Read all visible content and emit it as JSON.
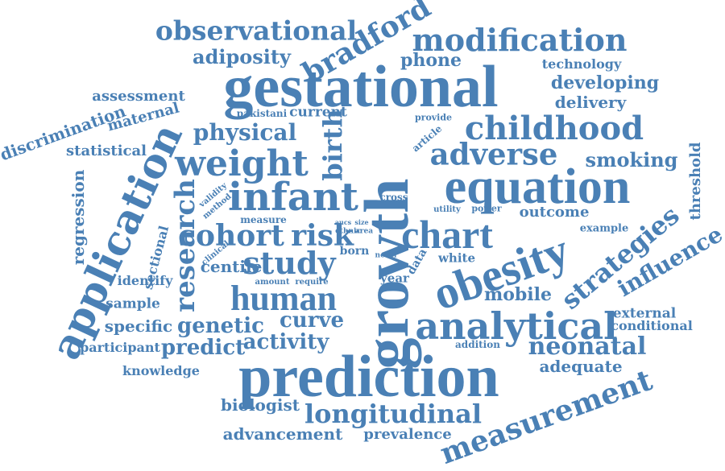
{
  "color": "#4a80b5",
  "words": [
    "observational",
    "bradford",
    "modification",
    "adiposity",
    "phone",
    "technology",
    "gestational",
    "developing",
    "assessment",
    "delivery",
    "maternal",
    "pakistani",
    "current",
    "provide",
    "childhood",
    "discrimination",
    "article",
    "statistical",
    "physical",
    "adverse",
    "smoking",
    "weight",
    "birth",
    "threshold",
    "regression",
    "application",
    "research",
    "validity",
    "method",
    "infant",
    "cross",
    "equation",
    "sectional",
    "utility",
    "power",
    "outcome",
    "example",
    "measure",
    "aucs",
    "size",
    "ethnic",
    "area",
    "cohort",
    "risk",
    "chart",
    "strategies",
    "clinical",
    "born",
    "novel",
    "data",
    "white",
    "study",
    "centile",
    "identify",
    "amount",
    "require",
    "year",
    "obesity",
    "influence",
    "sample",
    "human",
    "mobile",
    "growth",
    "external",
    "specific",
    "genetic",
    "curve",
    "analytical",
    "conditional",
    "participant",
    "predict",
    "activity",
    "addition",
    "neonatal",
    "knowledge",
    "prediction",
    "adequate",
    "biologist",
    "longitudinal",
    "measurement",
    "advancement",
    "prevalence"
  ]
}
